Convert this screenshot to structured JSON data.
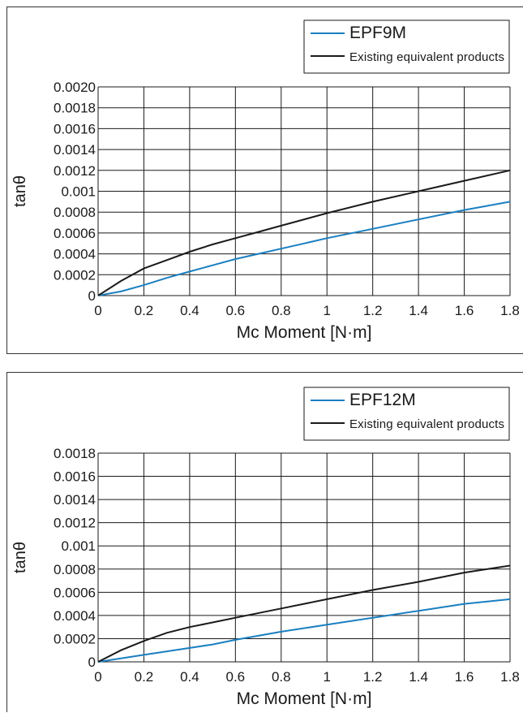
{
  "chart_data": [
    {
      "type": "line",
      "xlabel": "Mc Moment [N·m]",
      "ylabel": "tanθ",
      "xlim": [
        0,
        1.8
      ],
      "ylim": [
        0,
        0.002
      ],
      "x_ticks": [
        "0",
        "0.2",
        "0.4",
        "0.6",
        "0.8",
        "1",
        "1.2",
        "1.4",
        "1.6",
        "1.8"
      ],
      "y_ticks": [
        "0",
        "0.0002",
        "0.0004",
        "0.0006",
        "0.0008",
        "0.001",
        "0.0012",
        "0.0014",
        "0.0016",
        "0.0018",
        "0.0020"
      ],
      "grid": true,
      "legend_position": "top-right",
      "series": [
        {
          "name": "EPF9M",
          "color": "#1a7fc1",
          "x": [
            0,
            0.1,
            0.2,
            0.3,
            0.4,
            0.5,
            0.6,
            0.7,
            0.8,
            0.9,
            1.0,
            1.2,
            1.4,
            1.6,
            1.8
          ],
          "y": [
            0,
            4e-05,
            0.0001,
            0.00017,
            0.00023,
            0.00029,
            0.00035,
            0.0004,
            0.00045,
            0.0005,
            0.00055,
            0.00064,
            0.00073,
            0.00082,
            0.0009
          ]
        },
        {
          "name": "Existing equivalent products",
          "color": "#1a1a1a",
          "x": [
            0,
            0.1,
            0.2,
            0.3,
            0.4,
            0.5,
            0.6,
            0.7,
            0.8,
            1.0,
            1.2,
            1.4,
            1.6,
            1.8
          ],
          "y": [
            0,
            0.00014,
            0.00026,
            0.00034,
            0.00042,
            0.00049,
            0.00055,
            0.00061,
            0.00067,
            0.00079,
            0.0009,
            0.001,
            0.0011,
            0.0012
          ]
        }
      ]
    },
    {
      "type": "line",
      "xlabel": "Mc Moment [N·m]",
      "ylabel": "tanθ",
      "xlim": [
        0,
        1.8
      ],
      "ylim": [
        0,
        0.0018
      ],
      "x_ticks": [
        "0",
        "0.2",
        "0.4",
        "0.6",
        "0.8",
        "1",
        "1.2",
        "1.4",
        "1.6",
        "1.8"
      ],
      "y_ticks": [
        "0",
        "0.0002",
        "0.0004",
        "0.0006",
        "0.0008",
        "0.001",
        "0.0012",
        "0.0014",
        "0.0016",
        "0.0018"
      ],
      "grid": true,
      "legend_position": "top-right",
      "series": [
        {
          "name": "EPF12M",
          "color": "#1a7fc1",
          "x": [
            0,
            0.1,
            0.2,
            0.3,
            0.4,
            0.5,
            0.6,
            0.8,
            1.0,
            1.2,
            1.4,
            1.6,
            1.8
          ],
          "y": [
            0,
            3e-05,
            6e-05,
            9e-05,
            0.00012,
            0.00015,
            0.00019,
            0.00026,
            0.00032,
            0.00038,
            0.00044,
            0.0005,
            0.00054
          ]
        },
        {
          "name": "Existing equivalent products",
          "color": "#1a1a1a",
          "x": [
            0,
            0.1,
            0.2,
            0.3,
            0.4,
            0.5,
            0.6,
            0.8,
            1.0,
            1.2,
            1.4,
            1.6,
            1.8
          ],
          "y": [
            0,
            0.0001,
            0.00018,
            0.00025,
            0.0003,
            0.00034,
            0.00038,
            0.00046,
            0.00054,
            0.00062,
            0.00069,
            0.00077,
            0.00083
          ]
        }
      ]
    }
  ]
}
